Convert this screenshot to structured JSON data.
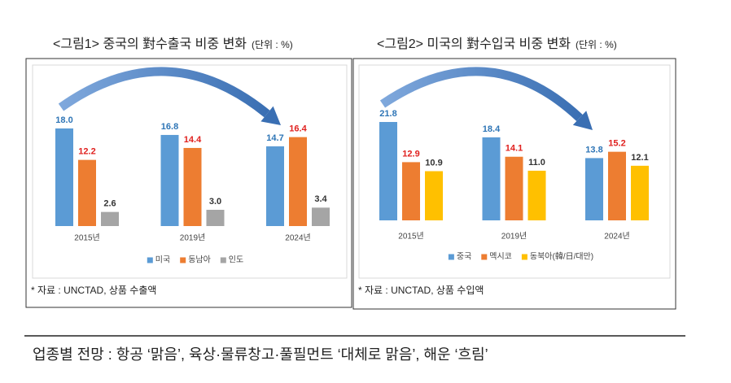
{
  "chart_data": [
    {
      "type": "bar",
      "title": "<그림1> 중국의 對수출국 비중 변화",
      "unit_note": "(단위 : %)",
      "categories": [
        "2015년",
        "2019년",
        "2024년"
      ],
      "series": [
        {
          "name": "미국",
          "color": "#5b9bd5",
          "label_color": "#2e75b6",
          "values": [
            18.0,
            16.8,
            14.7
          ],
          "value_labels": [
            "18.0",
            "16.8",
            "14.7"
          ]
        },
        {
          "name": "동남아",
          "color": "#ed7d31",
          "label_color": "#e0201e",
          "values": [
            12.2,
            14.4,
            16.4
          ],
          "value_labels": [
            "12.2",
            "14.4",
            "16.4"
          ]
        },
        {
          "name": "인도",
          "color": "#a5a5a5",
          "label_color": "#333333",
          "values": [
            2.6,
            3.0,
            3.4
          ],
          "value_labels": [
            "2.6",
            "3.0",
            "3.4"
          ]
        }
      ],
      "legend": "bottom",
      "note": "* 자료 : UNCTAD, 상품 수출액"
    },
    {
      "type": "bar",
      "title": "<그림2> 미국의 對수입국 비중 변화",
      "unit_note": "(단위 : %)",
      "categories": [
        "2015년",
        "2019년",
        "2024년"
      ],
      "series": [
        {
          "name": "중국",
          "color": "#5b9bd5",
          "label_color": "#2e75b6",
          "values": [
            21.8,
            18.4,
            13.8
          ],
          "value_labels": [
            "21.8",
            "18.4",
            "13.8"
          ]
        },
        {
          "name": "멕시코",
          "color": "#ed7d31",
          "label_color": "#e0201e",
          "values": [
            12.9,
            14.1,
            15.2
          ],
          "value_labels": [
            "12.9",
            "14.1",
            "15.2"
          ]
        },
        {
          "name": "동북아(韓/日/대만)",
          "color": "#ffc000",
          "label_color": "#333333",
          "values": [
            10.9,
            11.0,
            12.1
          ],
          "value_labels": [
            "10.9",
            "11.0",
            "12.1"
          ]
        }
      ],
      "legend": "bottom",
      "note": "* 자료 : UNCTAD, 상품 수입액"
    }
  ],
  "footer": {
    "headline": "업종별 전망 : 항공 ‘맑음’, 육상·물류창고·풀필먼트 ‘대체로 맑음’, 해운 ‘흐림’"
  }
}
